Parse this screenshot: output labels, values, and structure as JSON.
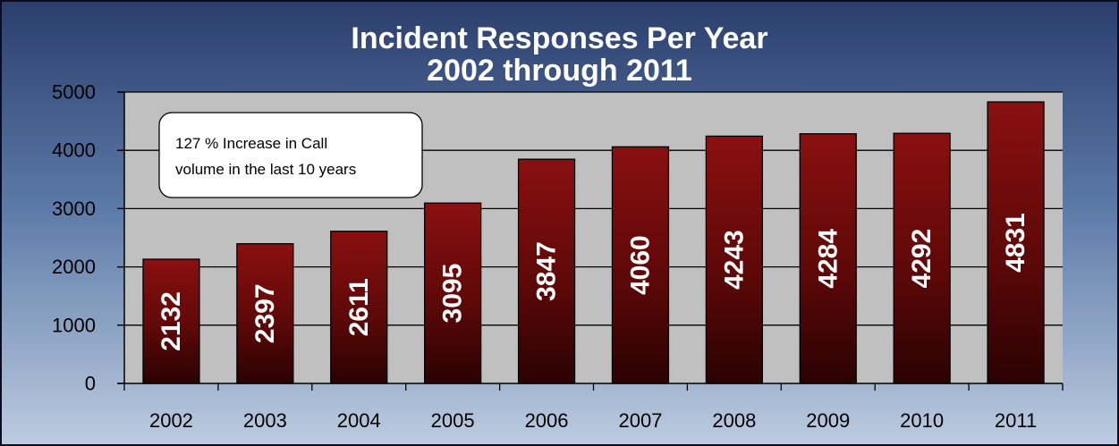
{
  "chart_data": {
    "type": "bar",
    "title_lines": [
      "Incident Responses Per Year",
      "2002 through 2011"
    ],
    "categories": [
      "2002",
      "2003",
      "2004",
      "2005",
      "2006",
      "2007",
      "2008",
      "2009",
      "2010",
      "2011"
    ],
    "values": [
      2132,
      2397,
      2611,
      3095,
      3847,
      4060,
      4243,
      4284,
      4292,
      4831
    ],
    "data_labels": [
      "2132",
      "2397",
      "2611",
      "3095",
      "3847",
      "4060",
      "4243",
      "4284",
      "4292",
      "4831"
    ],
    "y_ticks": [
      0,
      1000,
      2000,
      3000,
      4000,
      5000
    ],
    "y_tick_labels": [
      "0",
      "1000",
      "2000",
      "3000",
      "4000",
      "5000"
    ],
    "ylim": [
      0,
      5000
    ],
    "xlabel": "",
    "ylabel": "",
    "grid": true,
    "legend": false,
    "annotation": {
      "lines": [
        "127 % Increase in Call",
        "volume in the last 10 years"
      ]
    },
    "colors": {
      "bar_top": "#8a1010",
      "bar_bottom": "#2a0202",
      "plot_background": "#c0c0c0",
      "gridline": "#000000",
      "title": "#ffffff"
    }
  }
}
